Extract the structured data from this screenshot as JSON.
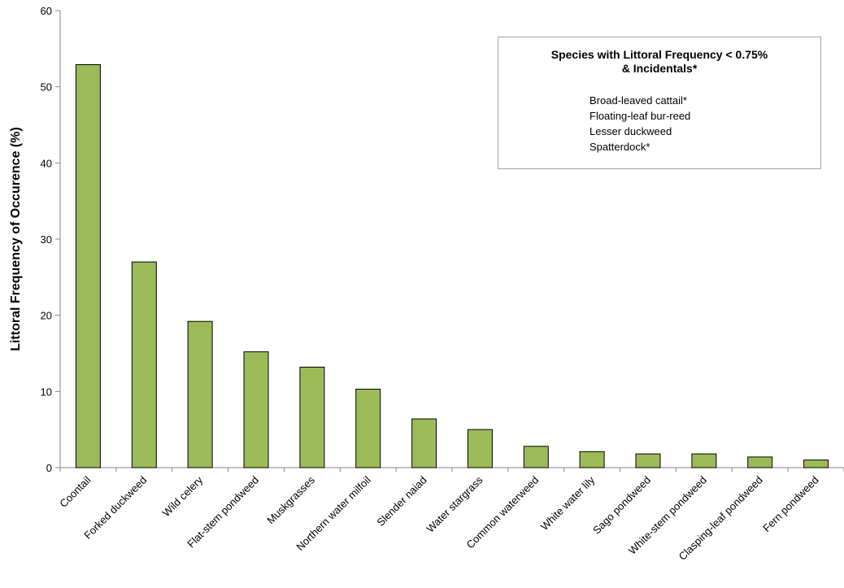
{
  "chart_data": {
    "type": "bar",
    "title": "",
    "xlabel": "",
    "ylabel": "Littoral Frequency of Occurence (%)",
    "ylim": [
      0,
      60
    ],
    "yticks": [
      "0",
      "10",
      "20",
      "30",
      "40",
      "50",
      "60"
    ],
    "grid": false,
    "categories": [
      "Coontail",
      "Forked duckweed",
      "Wild celery",
      "Flat-stem pondweed",
      "Muskgrasses",
      "Northern water milfoil",
      "Slender naiad",
      "Water stargrass",
      "Common waterweed",
      "White water lily",
      "Sago pondweed",
      "White-stem pondweed",
      "Clasping-leaf pondweed",
      "Fern pondweed"
    ],
    "values": [
      52.9,
      27.0,
      19.2,
      15.2,
      13.2,
      10.3,
      6.4,
      5.0,
      2.8,
      2.1,
      1.8,
      1.8,
      1.4,
      1.0
    ],
    "bar_color": "#9bbb59",
    "bar_edge_color": "#000000",
    "legend": {
      "placement": "top-right",
      "title_line1": "Species with Littoral Frequency < 0.75%",
      "title_line2": "& Incidentals*",
      "items": [
        "Broad-leaved cattail*",
        "Floating-leaf bur-reed",
        "Lesser duckweed",
        "Spatterdock*"
      ]
    }
  }
}
